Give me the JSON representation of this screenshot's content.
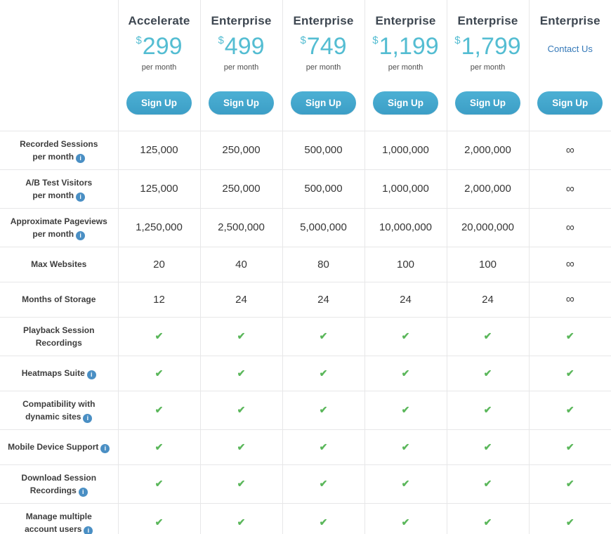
{
  "table": {
    "plans": [
      {
        "name": "Accelerate",
        "currency": "$",
        "price": "299",
        "period": "per month",
        "cta": "Sign Up"
      },
      {
        "name": "Enterprise",
        "currency": "$",
        "price": "499",
        "period": "per month",
        "cta": "Sign Up"
      },
      {
        "name": "Enterprise",
        "currency": "$",
        "price": "749",
        "period": "per month",
        "cta": "Sign Up"
      },
      {
        "name": "Enterprise",
        "currency": "$",
        "price": "1,199",
        "period": "per month",
        "cta": "Sign Up"
      },
      {
        "name": "Enterprise",
        "currency": "$",
        "price": "1,799",
        "period": "per month",
        "cta": "Sign Up"
      },
      {
        "name": "Enterprise",
        "contact": "Contact Us",
        "cta": "Sign Up"
      }
    ],
    "rows": [
      {
        "line1": "Recorded Sessions",
        "line2": "per month",
        "values": [
          "125,000",
          "250,000",
          "500,000",
          "1,000,000",
          "2,000,000",
          "∞"
        ]
      },
      {
        "line1": "A/B Test Visitors",
        "line2": "per month",
        "values": [
          "125,000",
          "250,000",
          "500,000",
          "1,000,000",
          "2,000,000",
          "∞"
        ]
      },
      {
        "line1": "Approximate Pageviews",
        "line2": "per month",
        "values": [
          "1,250,000",
          "2,500,000",
          "5,000,000",
          "10,000,000",
          "20,000,000",
          "∞"
        ]
      },
      {
        "line1": "Max Websites",
        "values": [
          "20",
          "40",
          "80",
          "100",
          "100",
          "∞"
        ]
      },
      {
        "line1": "Months of Storage",
        "values": [
          "12",
          "24",
          "24",
          "24",
          "24",
          "∞"
        ]
      },
      {
        "line1": "Playback Session",
        "line2": "Recordings",
        "values": [
          "✔",
          "✔",
          "✔",
          "✔",
          "✔",
          "✔"
        ]
      },
      {
        "line1": "Heatmaps Suite",
        "values": [
          "✔",
          "✔",
          "✔",
          "✔",
          "✔",
          "✔"
        ]
      },
      {
        "line1": "Compatibility with",
        "line2": "dynamic sites",
        "values": [
          "✔",
          "✔",
          "✔",
          "✔",
          "✔",
          "✔"
        ]
      },
      {
        "line1": "Mobile Device Support",
        "values": [
          "✔",
          "✔",
          "✔",
          "✔",
          "✔",
          "✔"
        ]
      },
      {
        "line1": "Download Session",
        "line2": "Recordings",
        "values": [
          "✔",
          "✔",
          "✔",
          "✔",
          "✔",
          "✔"
        ]
      },
      {
        "line1": "Manage multiple",
        "line2": "account users",
        "values": [
          "✔",
          "✔",
          "✔",
          "✔",
          "✔",
          "✔"
        ]
      }
    ],
    "icons": {
      "info": "i"
    }
  },
  "colors": {
    "price_teal": "#54bdd2",
    "button_teal": "#3f9fc6",
    "check_green": "#5bb75b",
    "link_blue": "#3579b8",
    "info_blue": "#4a8fc4",
    "grid_border": "#e7e7e8"
  }
}
